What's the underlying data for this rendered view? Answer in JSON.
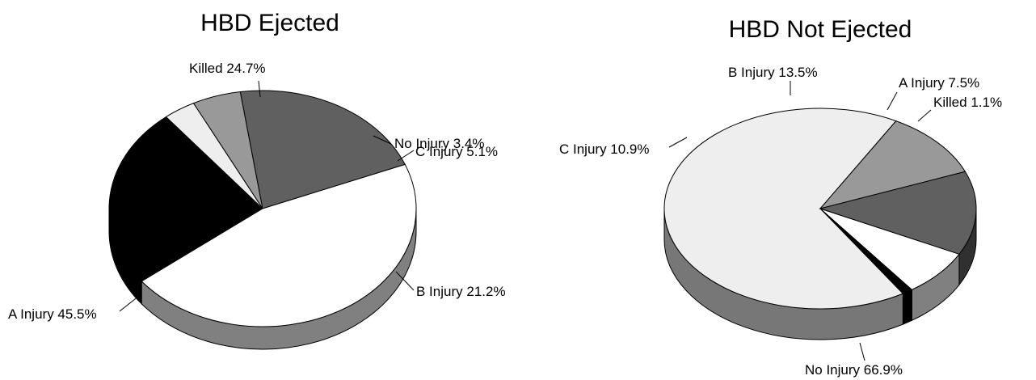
{
  "chart_data": [
    {
      "type": "pie",
      "title": "HBD Ejected",
      "slices": [
        {
          "label": "Killed",
          "value": 24.7,
          "display": "24.7%",
          "color": "#000000"
        },
        {
          "label": "No Injury",
          "value": 3.4,
          "display": "3.4%",
          "color": "#eeeeee"
        },
        {
          "label": "C Injury",
          "value": 5.1,
          "display": "5.1%",
          "color": "#999999"
        },
        {
          "label": "B Injury",
          "value": 21.2,
          "display": "21.2%",
          "color": "#606060"
        },
        {
          "label": "A Injury",
          "value": 45.5,
          "display": "45.5%",
          "color": "#ffffff"
        }
      ]
    },
    {
      "type": "pie",
      "title": "HBD Not Ejected",
      "slices": [
        {
          "label": "A Injury",
          "value": 7.5,
          "display": "7.5%",
          "color": "#ffffff"
        },
        {
          "label": "Killed",
          "value": 1.1,
          "display": "1.1%",
          "color": "#000000"
        },
        {
          "label": "No Injury",
          "value": 66.9,
          "display": "66.9%",
          "color": "#eeeeee"
        },
        {
          "label": "C Injury",
          "value": 10.9,
          "display": "10.9%",
          "color": "#999999"
        },
        {
          "label": "B Injury",
          "value": 13.5,
          "display": "13.5%",
          "color": "#606060"
        }
      ]
    }
  ]
}
